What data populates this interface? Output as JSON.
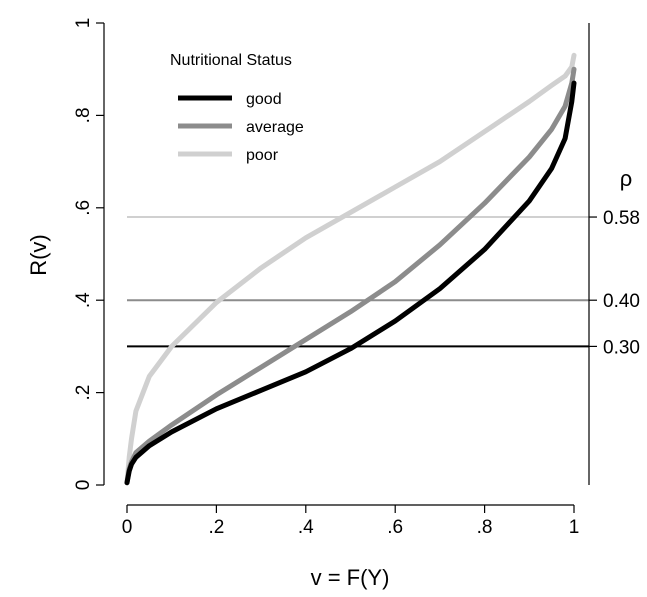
{
  "chart_data": {
    "type": "line",
    "xlabel": "v = F(Y)",
    "ylabel": "R(v)",
    "xlim": [
      0,
      1
    ],
    "ylim": [
      0,
      1
    ],
    "x_ticks": [
      {
        "value": 0,
        "label": "0"
      },
      {
        "value": 0.2,
        "label": ".2"
      },
      {
        "value": 0.4,
        "label": ".4"
      },
      {
        "value": 0.6,
        "label": ".6"
      },
      {
        "value": 0.8,
        "label": ".8"
      },
      {
        "value": 1,
        "label": "1"
      }
    ],
    "y_ticks": [
      {
        "value": 0,
        "label": "0"
      },
      {
        "value": 0.2,
        "label": ".2"
      },
      {
        "value": 0.4,
        "label": ".4"
      },
      {
        "value": 0.6,
        "label": ".6"
      },
      {
        "value": 0.8,
        "label": ".8"
      },
      {
        "value": 1,
        "label": "1"
      }
    ],
    "legend": {
      "title": "Nutritional Status",
      "placement": "top-left"
    },
    "right_axis_title": "ρ",
    "reference_lines": [
      {
        "y": 0.58,
        "label": "0.58",
        "color": "#d0d0d0"
      },
      {
        "y": 0.4,
        "label": "0.40",
        "color": "#8c8c8c"
      },
      {
        "y": 0.3,
        "label": "0.30",
        "color": "#000000"
      }
    ],
    "x": [
      0,
      0.005,
      0.01,
      0.02,
      0.05,
      0.1,
      0.2,
      0.3,
      0.4,
      0.5,
      0.6,
      0.7,
      0.8,
      0.9,
      0.95,
      0.98,
      0.995,
      1
    ],
    "series": [
      {
        "name": "good",
        "color": "#000000",
        "values": [
          0.005,
          0.03,
          0.045,
          0.06,
          0.085,
          0.115,
          0.165,
          0.205,
          0.245,
          0.295,
          0.355,
          0.425,
          0.51,
          0.615,
          0.685,
          0.75,
          0.83,
          0.87
        ]
      },
      {
        "name": "average",
        "color": "#8c8c8c",
        "values": [
          0.005,
          0.035,
          0.05,
          0.07,
          0.095,
          0.13,
          0.195,
          0.255,
          0.315,
          0.375,
          0.44,
          0.52,
          0.61,
          0.71,
          0.77,
          0.82,
          0.87,
          0.9
        ]
      },
      {
        "name": "poor",
        "color": "#d0d0d0",
        "values": [
          0.005,
          0.06,
          0.1,
          0.16,
          0.235,
          0.3,
          0.395,
          0.47,
          0.535,
          0.59,
          0.645,
          0.7,
          0.765,
          0.83,
          0.865,
          0.885,
          0.905,
          0.93
        ]
      }
    ]
  }
}
